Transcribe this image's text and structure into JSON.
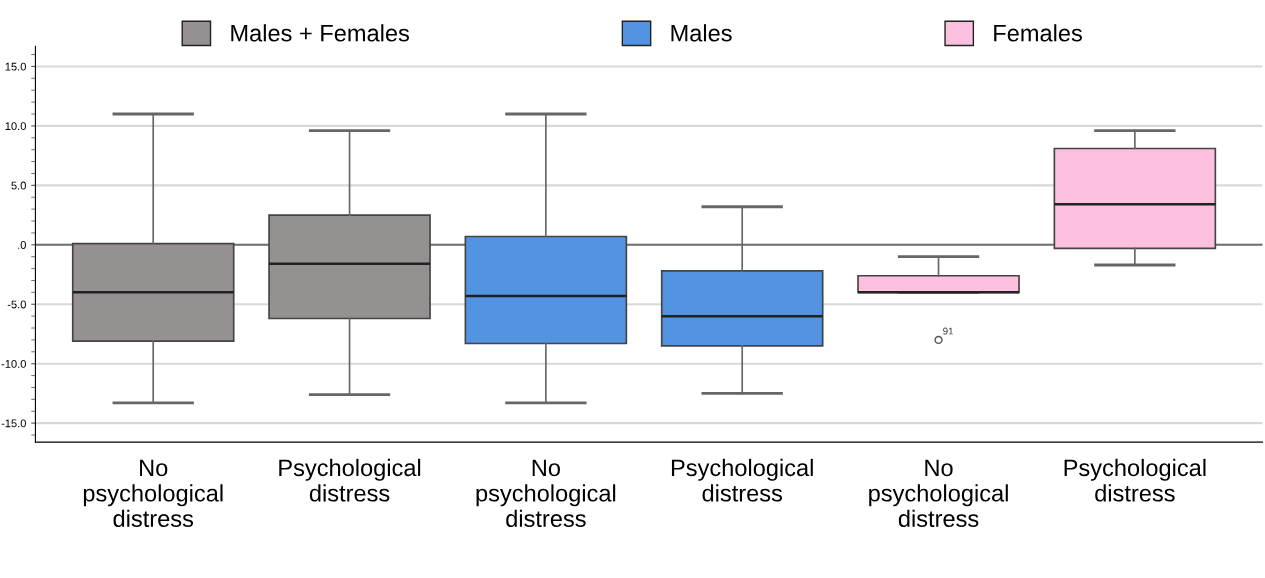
{
  "chart_data": {
    "type": "box",
    "categories": [
      "No\npsychological\ndistress",
      "Psychological\ndistress",
      "No\npsychological\ndistress",
      "Psychological\ndistress",
      "No\npsychological\ndistress",
      "Psychological\ndistress"
    ],
    "series": [
      {
        "name": "Males + Females",
        "color": "#959190",
        "boxes": [
          {
            "low": -13.3,
            "q1": -8.1,
            "median": -4.0,
            "q3": 0.1,
            "high": 11.0
          },
          {
            "low": -12.6,
            "q1": -6.2,
            "median": -1.6,
            "q3": 2.5,
            "high": 9.6
          },
          null,
          null,
          null,
          null
        ]
      },
      {
        "name": "Males",
        "color": "#5294e2",
        "boxes": [
          null,
          null,
          {
            "low": -13.3,
            "q1": -8.3,
            "median": -4.3,
            "q3": 0.7,
            "high": 11.0
          },
          {
            "low": -12.5,
            "q1": -8.5,
            "median": -6.0,
            "q3": -2.2,
            "high": 3.2
          },
          null,
          null
        ]
      },
      {
        "name": "Females",
        "color": "#fdc0df",
        "boxes": [
          null,
          null,
          null,
          null,
          {
            "low": -4.0,
            "q1": -4.0,
            "median": -4.0,
            "q3": -2.6,
            "high": -1.0,
            "outliers": [
              -8.0
            ]
          },
          {
            "low": -1.7,
            "q1": -0.3,
            "median": 3.4,
            "q3": 8.1,
            "high": 9.6
          }
        ]
      }
    ],
    "ylim": [
      -16.6,
      16.7
    ],
    "yticks": [
      {
        "value": -15,
        "label": "-15.0"
      },
      {
        "value": -10,
        "label": "-10.0"
      },
      {
        "value": -5,
        "label": "-5.0"
      },
      {
        "value": 0,
        "label": ".0"
      },
      {
        "value": 5,
        "label": "5.0"
      },
      {
        "value": 10,
        "label": "10.0"
      },
      {
        "value": 15,
        "label": "15.0"
      }
    ],
    "ref_lines": [
      {
        "axis": "y",
        "value": 0,
        "color": "#707070"
      }
    ],
    "annotations": [
      "91"
    ],
    "grid": "y",
    "legend": "top"
  }
}
